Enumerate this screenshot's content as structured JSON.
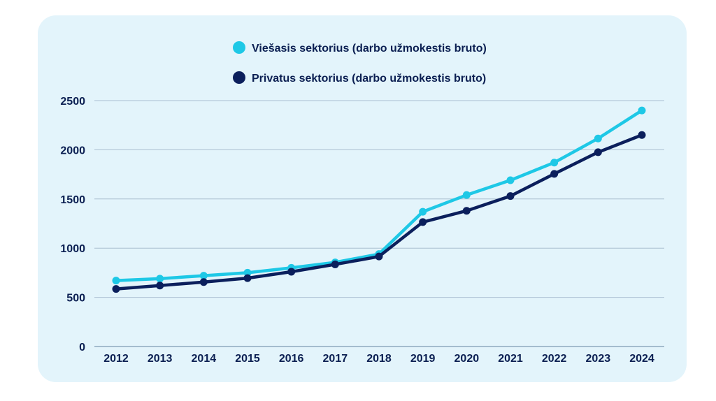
{
  "chart_data": {
    "type": "line",
    "title": "",
    "xlabel": "",
    "ylabel": "",
    "x": [
      "2012",
      "2013",
      "2014",
      "2015",
      "2016",
      "2017",
      "2018",
      "2019",
      "2020",
      "2021",
      "2022",
      "2023",
      "2024"
    ],
    "ylim": [
      0,
      2500
    ],
    "yticks": [
      "0",
      "500",
      "1000",
      "1500",
      "2000",
      "2500"
    ],
    "grid": true,
    "legend_position": "top-center",
    "series": [
      {
        "name": "Viešasis sektorius (darbo užmokestis bruto)",
        "color": "#1ec8e6",
        "values": [
          670,
          690,
          720,
          750,
          800,
          855,
          940,
          1370,
          1540,
          1690,
          1870,
          2115,
          2400
        ]
      },
      {
        "name": "Privatus sektorius (darbo užmokestis bruto)",
        "color": "#0b1f5c",
        "values": [
          585,
          620,
          655,
          695,
          760,
          835,
          915,
          1265,
          1380,
          1530,
          1755,
          1975,
          2150
        ]
      }
    ]
  }
}
